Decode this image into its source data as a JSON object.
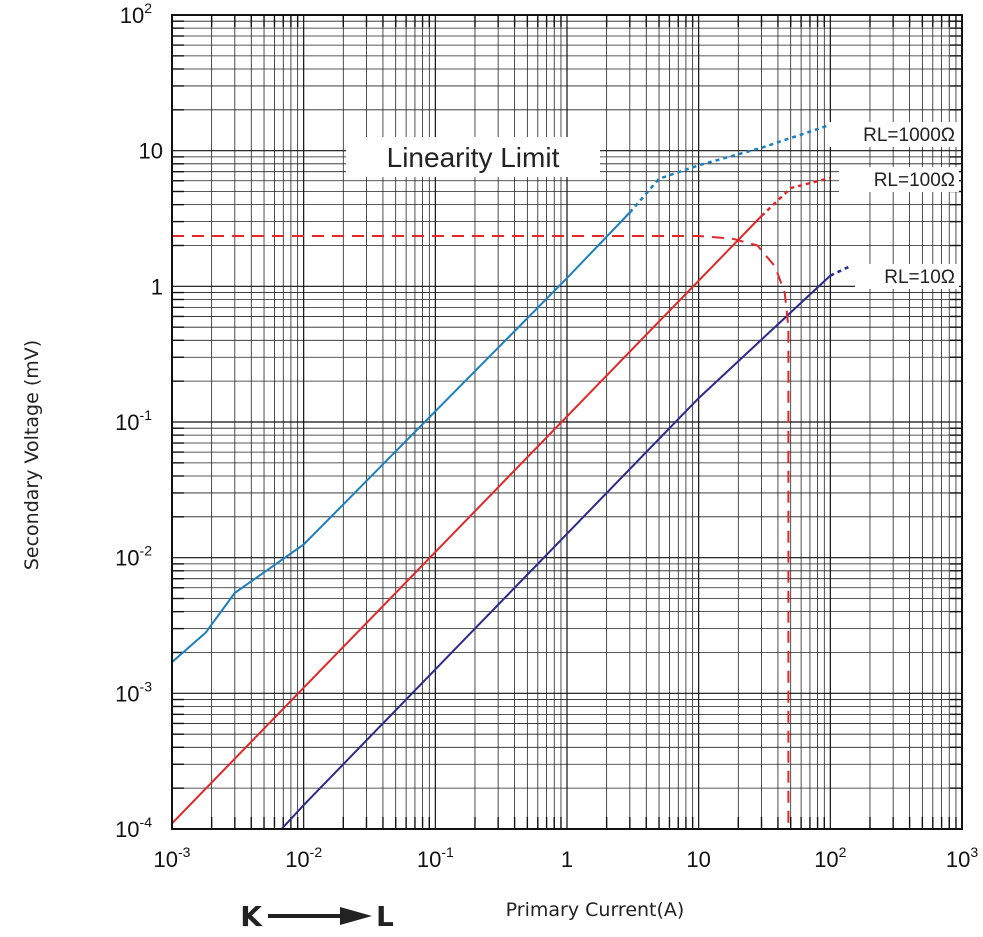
{
  "chart_data": {
    "type": "line",
    "xlabel": "Primary Current(A)",
    "ylabel": "Secondary  Voltage (mV)",
    "x_scale": "log",
    "y_scale": "log",
    "xlim": [
      0.001,
      1000
    ],
    "ylim": [
      0.0001,
      100
    ],
    "grid": true,
    "x_ticks": [
      {
        "value": 0.001,
        "base": "10",
        "exp": "-3"
      },
      {
        "value": 0.01,
        "base": "10",
        "exp": "-2"
      },
      {
        "value": 0.1,
        "base": "10",
        "exp": "-1"
      },
      {
        "value": 1,
        "base": "1",
        "exp": ""
      },
      {
        "value": 10,
        "base": "10",
        "exp": ""
      },
      {
        "value": 100,
        "base": "10",
        "exp": "2"
      },
      {
        "value": 1000,
        "base": "10",
        "exp": "3"
      }
    ],
    "y_ticks": [
      {
        "value": 0.0001,
        "base": "10",
        "exp": "-4"
      },
      {
        "value": 0.001,
        "base": "10",
        "exp": "-3"
      },
      {
        "value": 0.01,
        "base": "10",
        "exp": "-2"
      },
      {
        "value": 0.1,
        "base": "10",
        "exp": "-1"
      },
      {
        "value": 1,
        "base": "1",
        "exp": ""
      },
      {
        "value": 10,
        "base": "10",
        "exp": ""
      },
      {
        "value": 100,
        "base": "10",
        "exp": "2"
      }
    ],
    "series": [
      {
        "name": "RL=1000Ω",
        "color": "#1a7fc0",
        "solid": [
          [
            0.001,
            0.0017
          ],
          [
            0.0018,
            0.0028
          ],
          [
            0.003,
            0.0055
          ],
          [
            0.01,
            0.0125
          ],
          [
            0.1,
            0.12
          ],
          [
            1,
            1.15
          ],
          [
            3,
            3.5
          ]
        ],
        "dotted": [
          [
            3,
            3.5
          ],
          [
            5,
            6.2
          ],
          [
            10,
            7.8
          ],
          [
            30,
            10.5
          ],
          [
            100,
            15.5
          ]
        ]
      },
      {
        "name": "RL=100Ω",
        "color": "#e02828",
        "solid": [
          [
            0.001,
            0.00011
          ],
          [
            0.01,
            0.0011
          ],
          [
            0.1,
            0.011
          ],
          [
            1,
            0.11
          ],
          [
            10,
            1.1
          ],
          [
            30,
            3.3
          ]
        ],
        "dotted": [
          [
            30,
            3.3
          ],
          [
            50,
            5.3
          ],
          [
            100,
            6.3
          ]
        ]
      },
      {
        "name": "RL=10Ω",
        "color": "#2a2a8c",
        "solid": [
          [
            0.0068,
            0.0001
          ],
          [
            0.01,
            0.00015
          ],
          [
            0.1,
            0.0015
          ],
          [
            1,
            0.015
          ],
          [
            10,
            0.15
          ],
          [
            100,
            1.2
          ]
        ],
        "dotted": [
          [
            100,
            1.2
          ],
          [
            140,
            1.4
          ]
        ]
      }
    ],
    "linearity_limit": {
      "label": "Linearity Limit",
      "color": "#e02828",
      "points": [
        [
          0.001,
          2.35
        ],
        [
          10,
          2.35
        ],
        [
          18,
          2.25
        ],
        [
          28,
          2.0
        ],
        [
          38,
          1.4
        ],
        [
          45,
          0.9
        ],
        [
          48,
          0.5
        ],
        [
          48,
          0.0001
        ]
      ]
    },
    "direction": {
      "from": "K",
      "to": "L"
    }
  }
}
